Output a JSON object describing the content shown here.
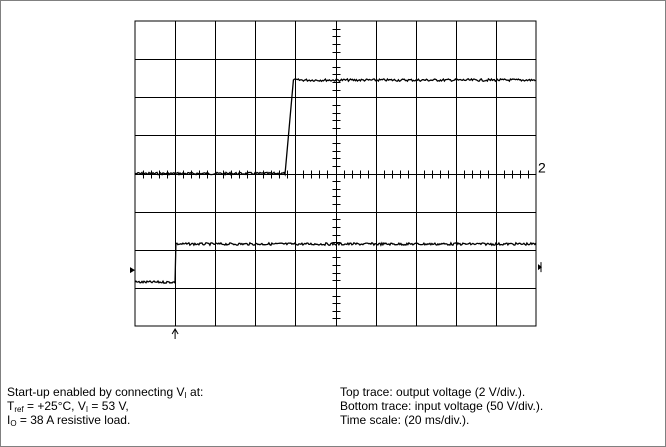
{
  "chart_data": {
    "type": "line",
    "title": "",
    "xlabel": "",
    "ylabel": "",
    "x_unit": "div",
    "y_unit": "div",
    "grid": true,
    "grid_divisions": {
      "x": 10,
      "y": 8
    },
    "xlim": [
      0,
      10
    ],
    "ylim": [
      0,
      8
    ],
    "series": [
      {
        "name": "Top trace: output voltage",
        "marker_label": "2",
        "points": [
          [
            0,
            4.0
          ],
          [
            3.75,
            4.0
          ],
          [
            3.95,
            6.45
          ],
          [
            10,
            6.45
          ]
        ]
      },
      {
        "name": "Bottom trace: input voltage",
        "marker_label": "",
        "points": [
          [
            0,
            1.15
          ],
          [
            1.0,
            1.15
          ],
          [
            1.02,
            2.15
          ],
          [
            10,
            2.15
          ]
        ]
      }
    ],
    "trigger_position_div": 1.0
  },
  "caption": {
    "left": {
      "line1_text": "Start-up enabled by connecting V",
      "line1_sub": "I",
      "line1_tail": " at:",
      "line2_a": "T",
      "line2_a_sub": "ref",
      "line2_b": " = +25°C, V",
      "line2_b_sub": "I",
      "line2_c": " = 53 V,",
      "line3_a": "I",
      "line3_a_sub": "O",
      "line3_b": " = 38 A resistive load."
    },
    "right": {
      "line1": "Top trace: output voltage (2 V/div.).",
      "line2": "Bottom trace: input voltage (50 V/div.).",
      "line3": "Time scale: (20 ms/div.)."
    }
  }
}
